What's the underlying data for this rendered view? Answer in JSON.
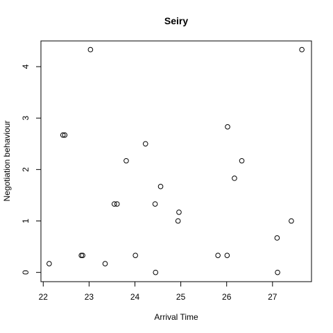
{
  "chart_data": {
    "type": "scatter",
    "title": "Seiry",
    "xlabel": "Arrival Time",
    "ylabel": "Negotiation behaviour",
    "xlim": [
      21.95,
      27.85
    ],
    "ylim": [
      -0.18,
      4.5
    ],
    "xticks": [
      22,
      23,
      24,
      25,
      26,
      27
    ],
    "yticks": [
      0,
      1,
      2,
      3,
      4
    ],
    "xtick_labels": [
      "22",
      "23",
      "24",
      "25",
      "26",
      "27"
    ],
    "ytick_labels": [
      "0",
      "1",
      "2",
      "3",
      "4"
    ],
    "grid": false,
    "legend": "none",
    "marker": "open-circle",
    "colors": {
      "marker": "#000000",
      "axis": "#000000",
      "background": "#ffffff"
    },
    "points": [
      {
        "x": 22.13,
        "y": 0.17
      },
      {
        "x": 22.43,
        "y": 2.67
      },
      {
        "x": 22.47,
        "y": 2.67
      },
      {
        "x": 22.83,
        "y": 0.33
      },
      {
        "x": 22.86,
        "y": 0.33
      },
      {
        "x": 23.03,
        "y": 4.33
      },
      {
        "x": 23.35,
        "y": 0.17
      },
      {
        "x": 23.55,
        "y": 1.33
      },
      {
        "x": 23.61,
        "y": 1.33
      },
      {
        "x": 23.81,
        "y": 2.17
      },
      {
        "x": 24.01,
        "y": 0.33
      },
      {
        "x": 24.23,
        "y": 2.5
      },
      {
        "x": 24.44,
        "y": 1.33
      },
      {
        "x": 24.45,
        "y": 0.0
      },
      {
        "x": 24.56,
        "y": 1.67
      },
      {
        "x": 24.94,
        "y": 1.0
      },
      {
        "x": 24.96,
        "y": 1.17
      },
      {
        "x": 25.81,
        "y": 0.33
      },
      {
        "x": 26.01,
        "y": 0.33
      },
      {
        "x": 26.02,
        "y": 2.83
      },
      {
        "x": 26.17,
        "y": 1.83
      },
      {
        "x": 26.33,
        "y": 2.17
      },
      {
        "x": 27.1,
        "y": 0.67
      },
      {
        "x": 27.11,
        "y": 0.0
      },
      {
        "x": 27.41,
        "y": 1.0
      },
      {
        "x": 27.64,
        "y": 4.33
      }
    ]
  }
}
